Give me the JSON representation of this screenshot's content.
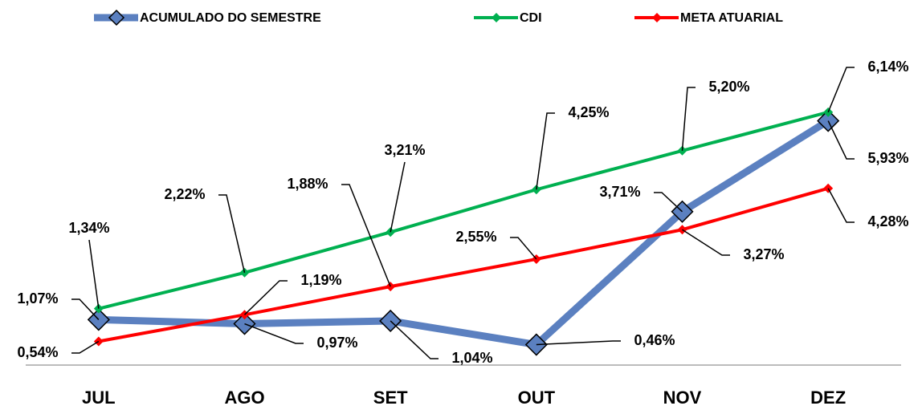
{
  "chart_data": {
    "type": "line",
    "categories": [
      "JUL",
      "AGO",
      "SET",
      "OUT",
      "NOV",
      "DEZ"
    ],
    "series": [
      {
        "name": "ACUMULADO DO SEMESTRE",
        "color": "#5b80c0",
        "values": [
          1.07,
          0.97,
          1.04,
          0.46,
          3.71,
          5.93
        ],
        "value_labels": [
          "1,07%",
          "0,97%",
          "1,04%",
          "0,46%",
          "3,71%",
          "5,93%"
        ]
      },
      {
        "name": "CDI",
        "color": "#00b050",
        "values": [
          1.34,
          2.22,
          3.21,
          4.25,
          5.2,
          6.14
        ],
        "value_labels": [
          "1,34%",
          "2,22%",
          "3,21%",
          "4,25%",
          "5,20%",
          "6,14%"
        ]
      },
      {
        "name": "META ATUARIAL",
        "color": "#ff0000",
        "values": [
          0.54,
          1.19,
          1.88,
          2.55,
          3.27,
          4.28
        ],
        "value_labels": [
          "0,54%",
          "1,19%",
          "1,88%",
          "2,55%",
          "3,27%",
          "4,28%"
        ]
      }
    ],
    "ylim": [
      0,
      7
    ]
  }
}
